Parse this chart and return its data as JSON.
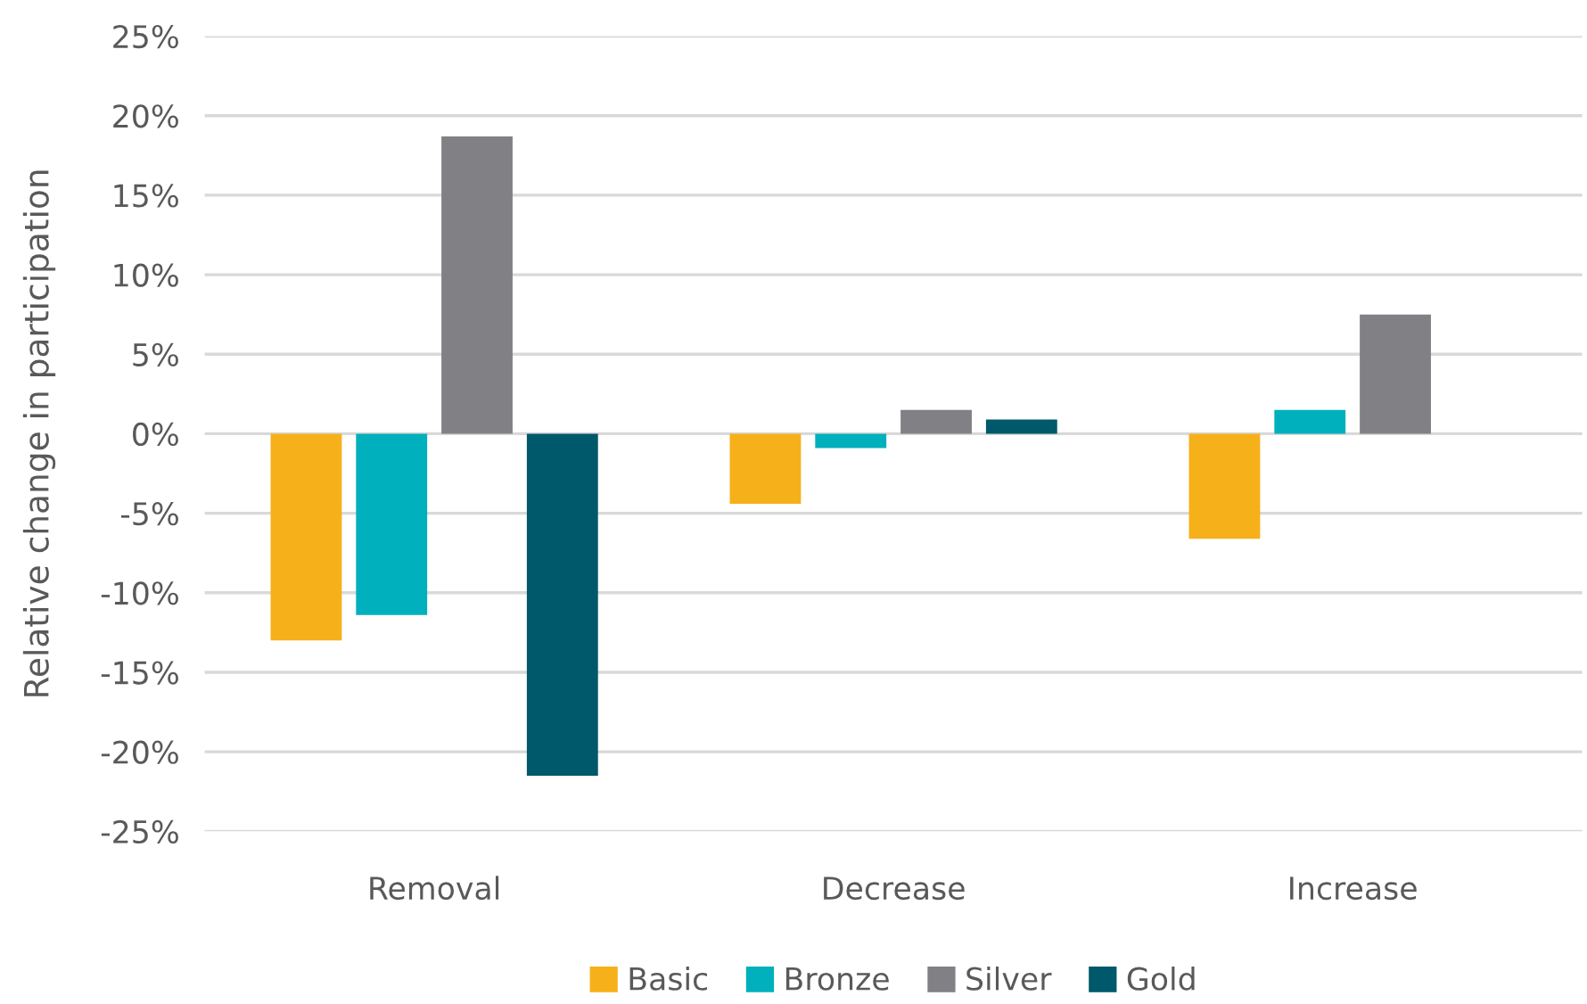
{
  "chart_data": {
    "type": "bar",
    "ylabel": "Relative change in participation",
    "categories": [
      "Removal",
      "Decrease",
      "Increase"
    ],
    "series": [
      {
        "name": "Basic",
        "color": "#f6b01a",
        "values": [
          -13.0,
          -4.4,
          -6.6
        ]
      },
      {
        "name": "Bronze",
        "color": "#00b0bc",
        "values": [
          -11.4,
          -0.9,
          1.5
        ]
      },
      {
        "name": "Silver",
        "color": "#818085",
        "values": [
          18.7,
          1.5,
          7.5
        ]
      },
      {
        "name": "Gold",
        "color": "#00586b",
        "values": [
          -21.5,
          0.9,
          null
        ]
      }
    ],
    "ylim": [
      -25,
      25
    ],
    "yticks": [
      {
        "value": -25,
        "label": "-25%"
      },
      {
        "value": -20,
        "label": "-20%"
      },
      {
        "value": -15,
        "label": "-15%"
      },
      {
        "value": -10,
        "label": "-10%"
      },
      {
        "value": -5,
        "label": "-5%"
      },
      {
        "value": 0,
        "label": "0%"
      },
      {
        "value": 5,
        "label": "5%"
      },
      {
        "value": 10,
        "label": "10%"
      },
      {
        "value": 15,
        "label": "15%"
      },
      {
        "value": 20,
        "label": "20%"
      },
      {
        "value": 25,
        "label": "25%"
      }
    ],
    "grid": "y",
    "legend": "bottom"
  }
}
